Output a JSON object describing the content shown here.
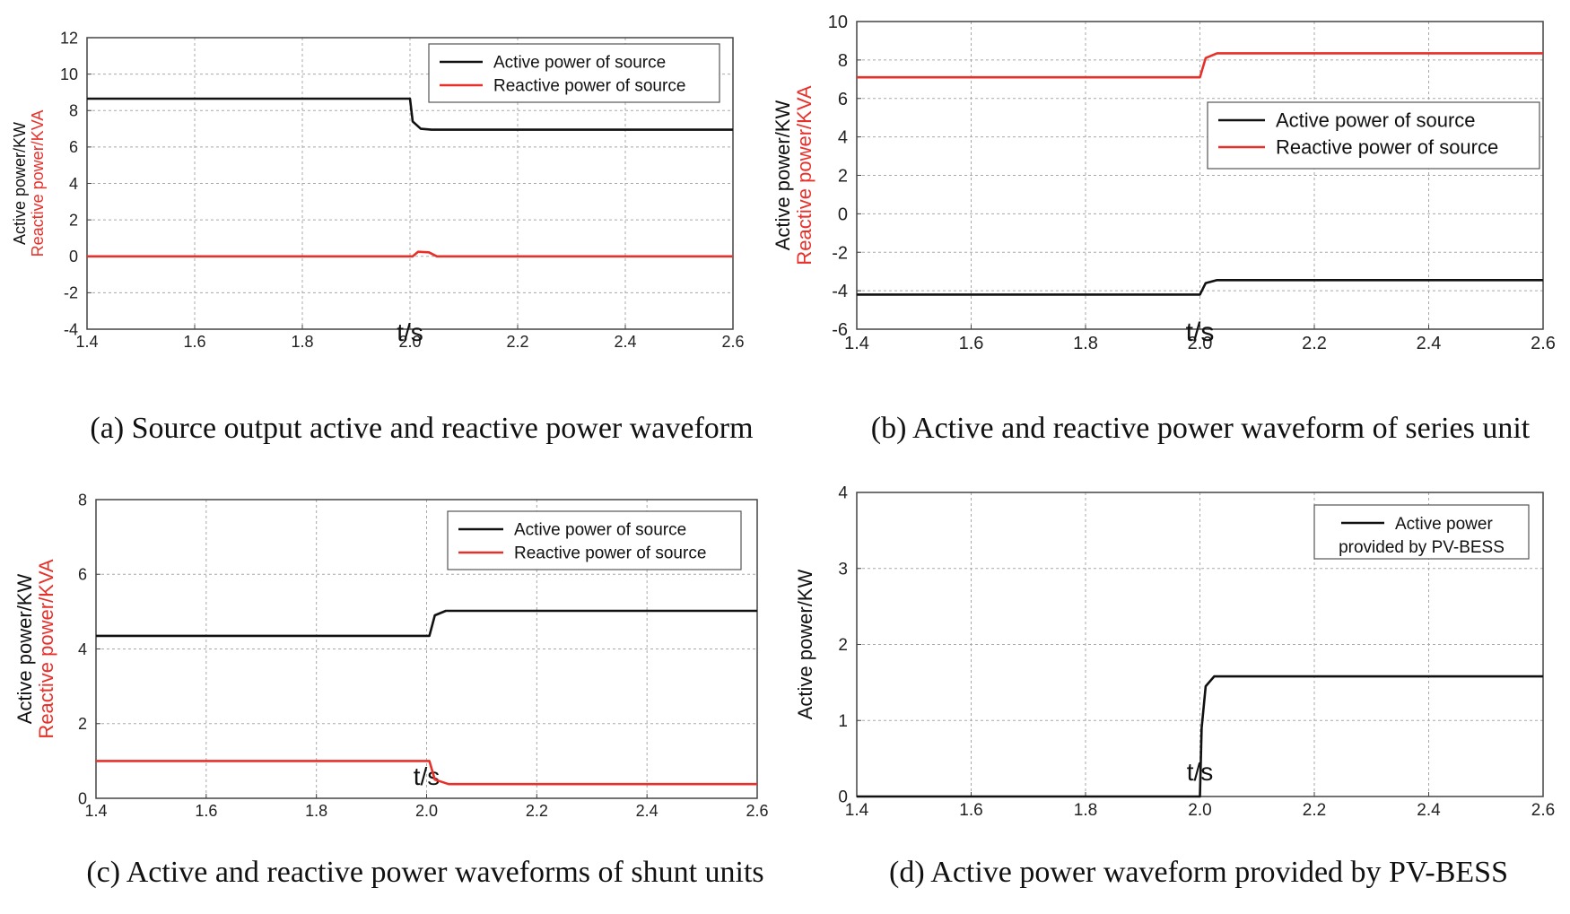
{
  "figure": {
    "captions": [
      "(a) Source output active and reactive power waveform",
      "(b) Active and reactive power waveform of series unit",
      "(c) Active and reactive power waveforms of shunt units",
      "(d) Active power waveform provided by PV-BESS"
    ]
  },
  "colors": {
    "active": "#111111",
    "reactive": "#e8302a",
    "grid": "#a8a8a8",
    "frame": "#444444"
  },
  "chart_data": [
    {
      "id": "a",
      "type": "line",
      "title": "(a) Source output active and reactive power waveform",
      "xlabel": "t/s",
      "ylabel_active": "Active power/KW",
      "ylabel_reactive": "Reactive power/KVA",
      "xlim": [
        1.4,
        2.6
      ],
      "ylim": [
        -4,
        12
      ],
      "xticks": [
        1.4,
        1.6,
        1.8,
        2.0,
        2.2,
        2.4,
        2.6
      ],
      "xtick_labels": [
        "1.4",
        "1.6",
        "1.8",
        "2.0",
        "2.2",
        "2.4",
        "2.6"
      ],
      "yticks": [
        -4,
        -2,
        0,
        2,
        4,
        6,
        8,
        10,
        12
      ],
      "ytick_labels": [
        "-4",
        "-2",
        "0",
        "2",
        "4",
        "6",
        "8",
        "10",
        "12"
      ],
      "legend_position": "top-right",
      "legend": [
        "Active power of source",
        "Reactive power of source"
      ],
      "series": [
        {
          "name": "Active power of source",
          "color": "#111111",
          "x": [
            1.4,
            2.0,
            2.005,
            2.02,
            2.04,
            2.1,
            2.6
          ],
          "y": [
            8.65,
            8.65,
            7.4,
            7.0,
            6.95,
            6.95,
            6.95
          ]
        },
        {
          "name": "Reactive power of source",
          "color": "#e8302a",
          "x": [
            1.4,
            2.005,
            2.015,
            2.035,
            2.05,
            2.6
          ],
          "y": [
            0.0,
            0.0,
            0.25,
            0.22,
            0.0,
            0.0
          ]
        }
      ]
    },
    {
      "id": "b",
      "type": "line",
      "title": "(b) Active and reactive power waveform of series unit",
      "xlabel": "t/s",
      "ylabel_active": "Active power/KW",
      "ylabel_reactive": "Reactive power/KVA",
      "xlim": [
        1.4,
        2.6
      ],
      "ylim": [
        -6,
        10
      ],
      "xticks": [
        1.4,
        1.6,
        1.8,
        2.0,
        2.2,
        2.4,
        2.6
      ],
      "xtick_labels": [
        "1.4",
        "1.6",
        "1.8",
        "2.0",
        "2.2",
        "2.4",
        "2.6"
      ],
      "yticks": [
        -6,
        -4,
        -2,
        0,
        2,
        4,
        6,
        8,
        10
      ],
      "ytick_labels": [
        "-6",
        "-4",
        "-2",
        "0",
        "2",
        "4",
        "6",
        "8",
        "10"
      ],
      "legend_position": "middle-right",
      "legend": [
        "Active power of source",
        "Reactive power of source"
      ],
      "series": [
        {
          "name": "Active power of source",
          "color": "#111111",
          "x": [
            1.4,
            2.0,
            2.01,
            2.03,
            2.6
          ],
          "y": [
            -4.2,
            -4.2,
            -3.6,
            -3.45,
            -3.45
          ]
        },
        {
          "name": "Reactive power of source",
          "color": "#e8302a",
          "x": [
            1.4,
            2.0,
            2.01,
            2.03,
            2.6
          ],
          "y": [
            7.1,
            7.1,
            8.1,
            8.35,
            8.35
          ]
        }
      ]
    },
    {
      "id": "c",
      "type": "line",
      "title": "(c) Active and reactive power waveforms of shunt units",
      "xlabel": "t/s",
      "ylabel_active": "Active power/KW",
      "ylabel_reactive": "Reactive power/KVA",
      "xlim": [
        1.4,
        2.6
      ],
      "ylim": [
        0,
        8
      ],
      "xticks": [
        1.4,
        1.6,
        1.8,
        2.0,
        2.2,
        2.4,
        2.6
      ],
      "xtick_labels": [
        "1.4",
        "1.6",
        "1.8",
        "2.0",
        "2.2",
        "2.4",
        "2.6"
      ],
      "yticks": [
        0,
        2,
        4,
        6,
        8
      ],
      "ytick_labels": [
        "0",
        "2",
        "4",
        "6",
        "8"
      ],
      "legend_position": "top-right",
      "legend": [
        "Active power of source",
        "Reactive power of source"
      ],
      "series": [
        {
          "name": "Active power of source",
          "color": "#111111",
          "x": [
            1.4,
            2.005,
            2.015,
            2.035,
            2.6
          ],
          "y": [
            4.35,
            4.35,
            4.9,
            5.02,
            5.02
          ]
        },
        {
          "name": "Reactive power of source",
          "color": "#e8302a",
          "x": [
            1.4,
            2.005,
            2.015,
            2.04,
            2.6
          ],
          "y": [
            1.0,
            1.0,
            0.5,
            0.38,
            0.38
          ]
        }
      ]
    },
    {
      "id": "d",
      "type": "line",
      "title": "(d) Active power waveform provided by PV-BESS",
      "xlabel": "t/s",
      "ylabel_active": "Active power/KW",
      "ylabel_reactive": "",
      "xlim": [
        1.4,
        2.6
      ],
      "ylim": [
        0,
        4
      ],
      "xticks": [
        1.4,
        1.6,
        1.8,
        2.0,
        2.2,
        2.4,
        2.6
      ],
      "xtick_labels": [
        "1.4",
        "1.6",
        "1.8",
        "2.0",
        "2.2",
        "2.4",
        "2.6"
      ],
      "yticks": [
        0,
        1,
        2,
        3,
        4
      ],
      "ytick_labels": [
        "0",
        "1",
        "2",
        "3",
        "4"
      ],
      "legend_position": "top-right",
      "legend": [
        "Active power",
        "provided by PV-BESS"
      ],
      "series": [
        {
          "name": "Active power provided by PV-BESS",
          "color": "#111111",
          "x": [
            1.4,
            2.0,
            2.003,
            2.01,
            2.025,
            2.6
          ],
          "y": [
            0.0,
            0.0,
            0.9,
            1.45,
            1.58,
            1.58
          ]
        }
      ]
    }
  ]
}
